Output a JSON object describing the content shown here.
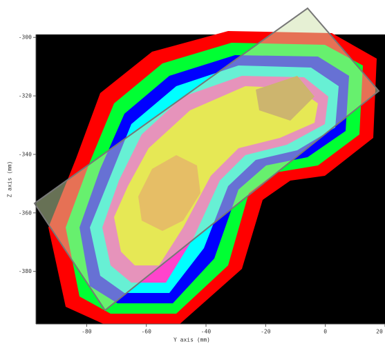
{
  "chart_data": {
    "type": "contour",
    "x_label": "Y axis (mm)",
    "y_label": "Z axis (mm)",
    "xlim": [
      -97,
      20
    ],
    "ylim": [
      -398,
      -299
    ],
    "xticks": [
      -80,
      -60,
      -40,
      -20,
      0,
      20
    ],
    "yticks": [
      -300,
      -320,
      -340,
      -360,
      -380
    ]
  }
}
